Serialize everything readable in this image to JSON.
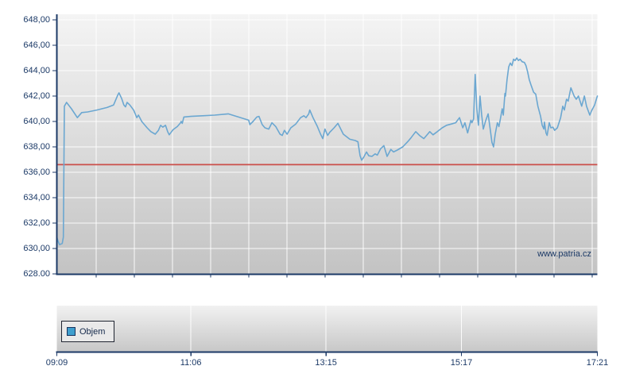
{
  "watermark": "www.patria.cz",
  "legend": {
    "label": "Objem",
    "swatch_color": "#3f9fce"
  },
  "colors": {
    "axis": "#1c3a67",
    "price_line": "#6ba7d1",
    "reference_line": "#cb4f4a",
    "gridline": "#ffffff",
    "plot_bg_top": "#f4f4f4",
    "plot_bg_bottom": "#c3c3c3",
    "volume_bg_top": "#f1f1f1",
    "volume_bg_bottom": "#c7c7c7"
  },
  "y_axis": {
    "labels": [
      "648,00",
      "646,00",
      "644,00",
      "642,00",
      "640,00",
      "638,00",
      "636,00",
      "634,00",
      "632,00",
      "630,00",
      "628.00"
    ]
  },
  "x_axis": {
    "labels": [
      "09:09",
      "11:06",
      "13:15",
      "15:17",
      "17:21"
    ]
  },
  "chart_data": {
    "type": "line",
    "title": "",
    "ylim": [
      628,
      648
    ],
    "y_tick_step": 2,
    "grid": true,
    "legend_position": "bottom-panel-left",
    "x_ticks": [
      {
        "label": "09:09",
        "pos": 0.0
      },
      {
        "label": "11:06",
        "pos": 0.248
      },
      {
        "label": "13:15",
        "pos": 0.498
      },
      {
        "label": "15:17",
        "pos": 0.7485
      },
      {
        "label": "17:21",
        "pos": 1.0
      }
    ],
    "reference_line": 636.6,
    "volume_panel": {
      "legend": "Objem",
      "bars_visible": false
    },
    "series": [
      {
        "name": "price",
        "points": [
          [
            0.0,
            630.9
          ],
          [
            0.002,
            630.6
          ],
          [
            0.005,
            630.3
          ],
          [
            0.01,
            630.4
          ],
          [
            0.012,
            630.9
          ],
          [
            0.014,
            641.2
          ],
          [
            0.018,
            641.5
          ],
          [
            0.027,
            641.0
          ],
          [
            0.038,
            640.3
          ],
          [
            0.046,
            640.7
          ],
          [
            0.057,
            640.75
          ],
          [
            0.074,
            640.9
          ],
          [
            0.093,
            641.1
          ],
          [
            0.105,
            641.3
          ],
          [
            0.113,
            642.1
          ],
          [
            0.115,
            642.25
          ],
          [
            0.12,
            641.8
          ],
          [
            0.124,
            641.3
          ],
          [
            0.127,
            641.15
          ],
          [
            0.13,
            641.5
          ],
          [
            0.135,
            641.3
          ],
          [
            0.142,
            640.9
          ],
          [
            0.148,
            640.3
          ],
          [
            0.151,
            640.5
          ],
          [
            0.157,
            640.0
          ],
          [
            0.167,
            639.5
          ],
          [
            0.174,
            639.2
          ],
          [
            0.182,
            639.0
          ],
          [
            0.188,
            639.3
          ],
          [
            0.192,
            639.7
          ],
          [
            0.196,
            639.55
          ],
          [
            0.201,
            639.7
          ],
          [
            0.205,
            639.2
          ],
          [
            0.208,
            638.95
          ],
          [
            0.215,
            639.35
          ],
          [
            0.223,
            639.6
          ],
          [
            0.229,
            639.9
          ],
          [
            0.23,
            640.0
          ],
          [
            0.232,
            639.85
          ],
          [
            0.235,
            640.35
          ],
          [
            0.248,
            640.4
          ],
          [
            0.27,
            640.45
          ],
          [
            0.292,
            640.5
          ],
          [
            0.317,
            640.6
          ],
          [
            0.336,
            640.35
          ],
          [
            0.355,
            640.1
          ],
          [
            0.357,
            639.75
          ],
          [
            0.363,
            640.0
          ],
          [
            0.37,
            640.35
          ],
          [
            0.374,
            640.4
          ],
          [
            0.38,
            639.75
          ],
          [
            0.385,
            639.5
          ],
          [
            0.392,
            639.4
          ],
          [
            0.398,
            639.9
          ],
          [
            0.405,
            639.6
          ],
          [
            0.413,
            639.0
          ],
          [
            0.417,
            638.9
          ],
          [
            0.421,
            639.3
          ],
          [
            0.426,
            639.0
          ],
          [
            0.433,
            639.5
          ],
          [
            0.442,
            639.8
          ],
          [
            0.451,
            640.3
          ],
          [
            0.457,
            640.45
          ],
          [
            0.461,
            640.3
          ],
          [
            0.466,
            640.6
          ],
          [
            0.468,
            640.9
          ],
          [
            0.474,
            640.3
          ],
          [
            0.482,
            639.6
          ],
          [
            0.488,
            639.0
          ],
          [
            0.492,
            638.65
          ],
          [
            0.496,
            639.4
          ],
          [
            0.501,
            638.9
          ],
          [
            0.505,
            639.15
          ],
          [
            0.513,
            639.5
          ],
          [
            0.52,
            639.85
          ],
          [
            0.53,
            639.0
          ],
          [
            0.542,
            638.6
          ],
          [
            0.552,
            638.5
          ],
          [
            0.557,
            638.4
          ],
          [
            0.561,
            637.3
          ],
          [
            0.564,
            636.95
          ],
          [
            0.568,
            637.2
          ],
          [
            0.573,
            637.6
          ],
          [
            0.577,
            637.3
          ],
          [
            0.583,
            637.25
          ],
          [
            0.589,
            637.45
          ],
          [
            0.593,
            637.35
          ],
          [
            0.599,
            637.85
          ],
          [
            0.605,
            638.1
          ],
          [
            0.611,
            637.25
          ],
          [
            0.618,
            637.8
          ],
          [
            0.623,
            637.6
          ],
          [
            0.63,
            637.75
          ],
          [
            0.64,
            638.0
          ],
          [
            0.649,
            638.4
          ],
          [
            0.655,
            638.7
          ],
          [
            0.664,
            639.2
          ],
          [
            0.671,
            638.9
          ],
          [
            0.679,
            638.65
          ],
          [
            0.686,
            639.0
          ],
          [
            0.69,
            639.2
          ],
          [
            0.696,
            638.95
          ],
          [
            0.704,
            639.2
          ],
          [
            0.713,
            639.5
          ],
          [
            0.721,
            639.7
          ],
          [
            0.73,
            639.8
          ],
          [
            0.738,
            639.9
          ],
          [
            0.745,
            640.3
          ],
          [
            0.751,
            639.5
          ],
          [
            0.755,
            639.9
          ],
          [
            0.76,
            639.1
          ],
          [
            0.766,
            640.1
          ],
          [
            0.768,
            639.9
          ],
          [
            0.771,
            640.2
          ],
          [
            0.774,
            643.7
          ],
          [
            0.777,
            641.0
          ],
          [
            0.78,
            639.7
          ],
          [
            0.783,
            642.0
          ],
          [
            0.786,
            640.5
          ],
          [
            0.789,
            639.4
          ],
          [
            0.793,
            640.0
          ],
          [
            0.798,
            640.6
          ],
          [
            0.802,
            639.3
          ],
          [
            0.805,
            638.35
          ],
          [
            0.808,
            638.0
          ],
          [
            0.811,
            639.0
          ],
          [
            0.815,
            639.9
          ],
          [
            0.818,
            639.6
          ],
          [
            0.821,
            640.3
          ],
          [
            0.824,
            641.0
          ],
          [
            0.826,
            640.5
          ],
          [
            0.829,
            642.2
          ],
          [
            0.83,
            642.0
          ],
          [
            0.833,
            643.3
          ],
          [
            0.836,
            644.3
          ],
          [
            0.839,
            644.6
          ],
          [
            0.842,
            644.4
          ],
          [
            0.845,
            644.9
          ],
          [
            0.848,
            644.8
          ],
          [
            0.851,
            645.0
          ],
          [
            0.854,
            644.8
          ],
          [
            0.857,
            644.9
          ],
          [
            0.861,
            644.7
          ],
          [
            0.865,
            644.65
          ],
          [
            0.868,
            644.4
          ],
          [
            0.871,
            643.9
          ],
          [
            0.874,
            643.3
          ],
          [
            0.877,
            642.9
          ],
          [
            0.882,
            642.3
          ],
          [
            0.886,
            642.15
          ],
          [
            0.89,
            641.2
          ],
          [
            0.895,
            640.4
          ],
          [
            0.898,
            639.7
          ],
          [
            0.901,
            639.4
          ],
          [
            0.902,
            639.95
          ],
          [
            0.905,
            639.1
          ],
          [
            0.907,
            638.9
          ],
          [
            0.911,
            639.9
          ],
          [
            0.914,
            639.5
          ],
          [
            0.918,
            639.55
          ],
          [
            0.921,
            639.3
          ],
          [
            0.926,
            639.5
          ],
          [
            0.932,
            640.3
          ],
          [
            0.936,
            641.2
          ],
          [
            0.939,
            640.9
          ],
          [
            0.943,
            641.75
          ],
          [
            0.946,
            641.6
          ],
          [
            0.951,
            642.65
          ],
          [
            0.957,
            642.0
          ],
          [
            0.961,
            641.75
          ],
          [
            0.965,
            642.0
          ],
          [
            0.971,
            641.2
          ],
          [
            0.976,
            642.0
          ],
          [
            0.98,
            641.2
          ],
          [
            0.986,
            640.5
          ],
          [
            0.99,
            640.9
          ],
          [
            0.995,
            641.3
          ],
          [
            1.0,
            642.0
          ]
        ]
      }
    ]
  }
}
